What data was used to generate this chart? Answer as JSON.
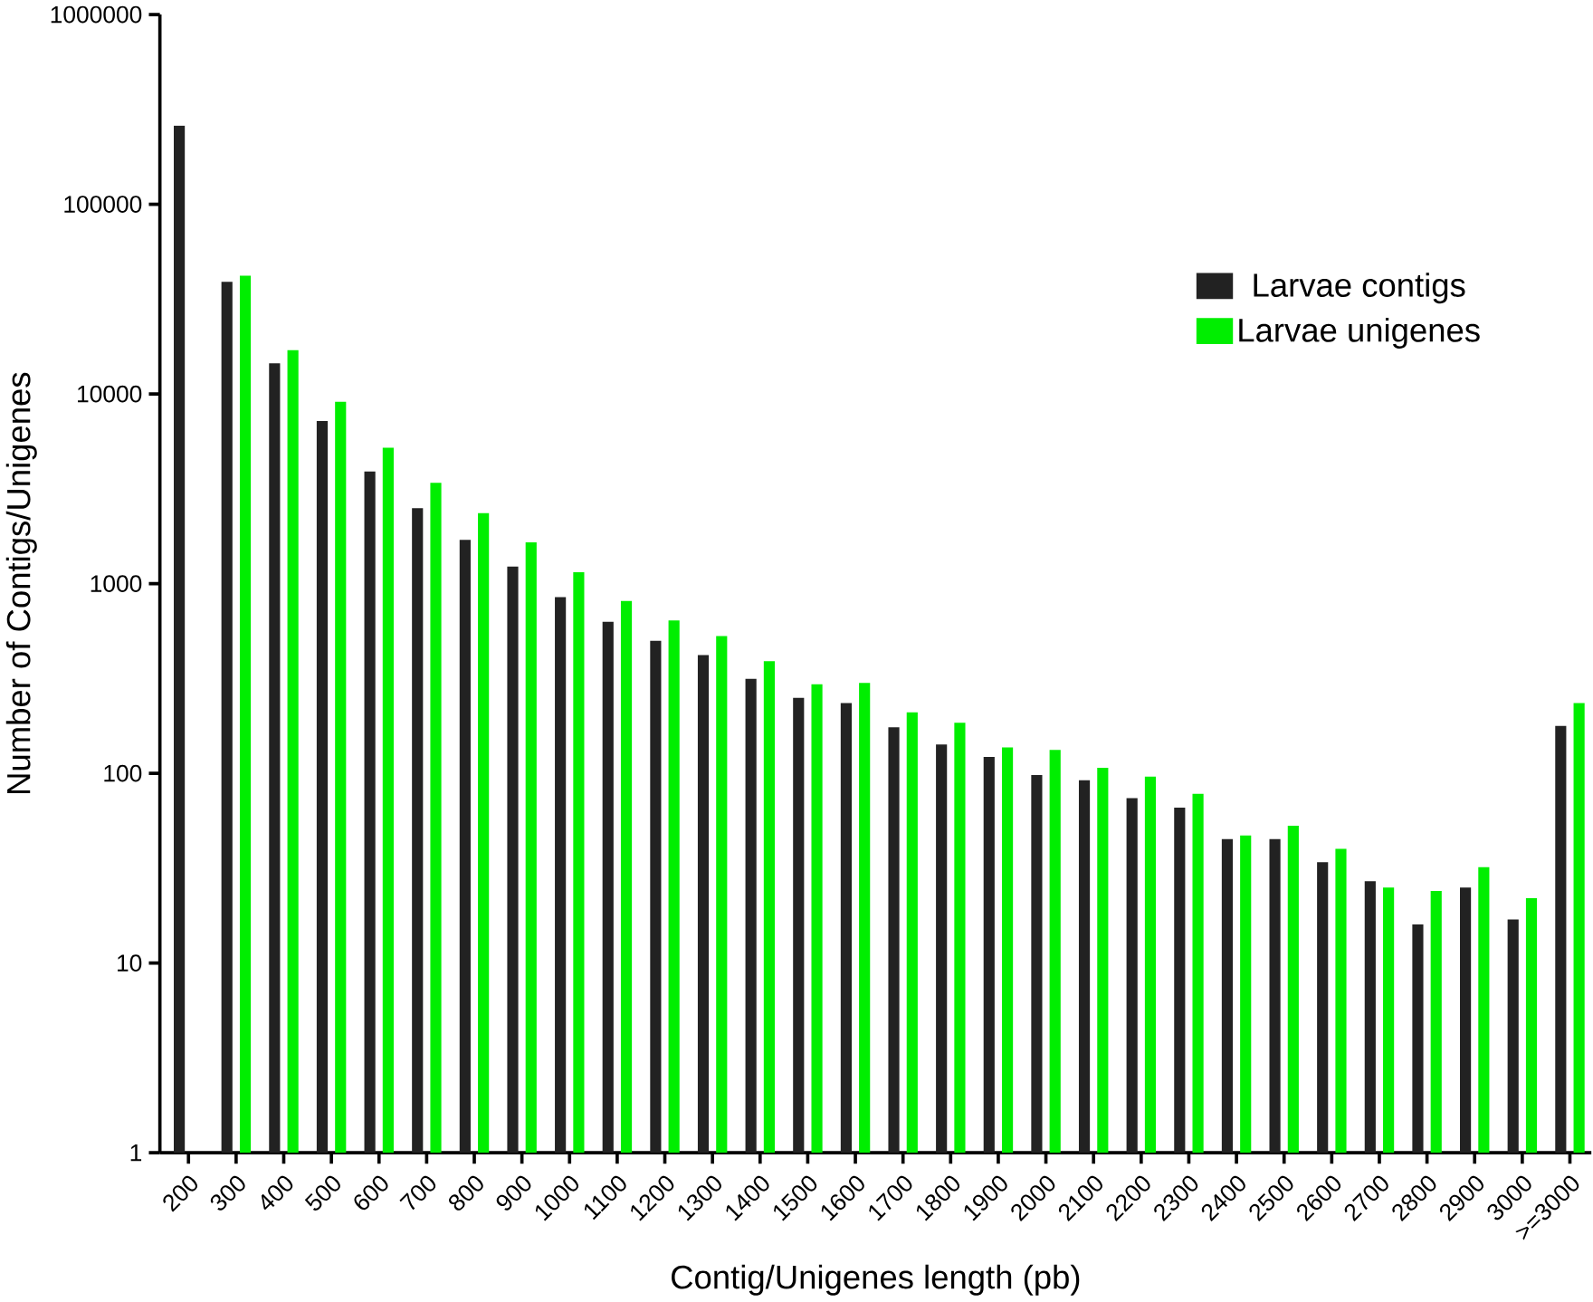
{
  "chart_data": {
    "type": "bar",
    "xlabel": "Contig/Unigenes length (pb)",
    "ylabel": "Number of Contigs/Unigenes",
    "categories": [
      "200",
      "300",
      "400",
      "500",
      "600",
      "700",
      "800",
      "900",
      "1000",
      "1100",
      "1200",
      "1300",
      "1400",
      "1500",
      "1600",
      "1700",
      "1800",
      "1900",
      "2000",
      "2100",
      "2200",
      "2300",
      "2400",
      "2500",
      "2600",
      "2700",
      "2800",
      "2900",
      "3000",
      ">=3000"
    ],
    "series": [
      {
        "name": "Larvae contigs",
        "color": "#222222",
        "values": [
          260000,
          39000,
          14500,
          7200,
          3900,
          2500,
          1700,
          1230,
          850,
          630,
          500,
          420,
          315,
          250,
          235,
          175,
          142,
          122,
          98,
          92,
          74,
          66,
          45,
          45,
          34,
          27,
          16,
          25,
          17,
          178
        ]
      },
      {
        "name": "Larvae unigenes",
        "color": "#00ee00",
        "values": [
          null,
          42000,
          17000,
          9100,
          5200,
          3400,
          2350,
          1650,
          1150,
          810,
          640,
          530,
          390,
          295,
          300,
          210,
          185,
          137,
          133,
          107,
          96,
          78,
          47,
          53,
          40,
          25,
          24,
          32,
          22,
          235
        ]
      }
    ],
    "log": true,
    "ylim": [
      1,
      1000000
    ],
    "yticks": [
      1,
      10,
      100,
      1000,
      10000,
      100000,
      1000000
    ],
    "grid": false,
    "legend": "right"
  }
}
